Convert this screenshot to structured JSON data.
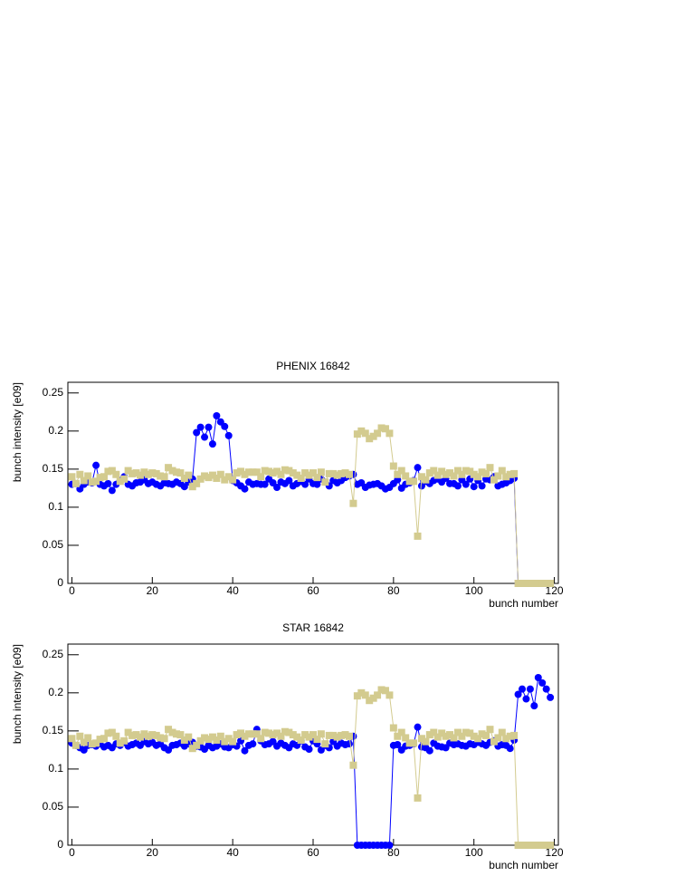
{
  "chart_data": [
    {
      "type": "line",
      "title": "PHENIX 16842",
      "x_label": "bunch number",
      "y_label": "bunch intensity [e09]",
      "x": [
        0,
        1,
        2,
        3,
        4,
        5,
        6,
        7,
        8,
        9,
        10,
        11,
        12,
        13,
        14,
        15,
        16,
        17,
        18,
        19,
        20,
        21,
        22,
        23,
        24,
        25,
        26,
        27,
        28,
        29,
        30,
        31,
        32,
        33,
        34,
        35,
        36,
        37,
        38,
        39,
        40,
        41,
        42,
        43,
        44,
        45,
        46,
        47,
        48,
        49,
        50,
        51,
        52,
        53,
        54,
        55,
        56,
        57,
        58,
        59,
        60,
        61,
        62,
        63,
        64,
        65,
        66,
        67,
        68,
        69,
        70,
        71,
        72,
        73,
        74,
        75,
        76,
        77,
        78,
        79,
        80,
        81,
        82,
        83,
        84,
        85,
        86,
        87,
        88,
        89,
        90,
        91,
        92,
        93,
        94,
        95,
        96,
        97,
        98,
        99,
        100,
        101,
        102,
        103,
        104,
        105,
        106,
        107,
        108,
        109,
        110,
        111,
        112,
        113,
        114,
        115,
        116,
        117,
        118,
        119
      ],
      "series": [
        {
          "color": "#0000ff",
          "marker": "circle",
          "values": [
            0.13,
            0.131,
            0.124,
            0.13,
            0.133,
            0.132,
            0.155,
            0.13,
            0.128,
            0.131,
            0.122,
            0.13,
            0.135,
            0.14,
            0.13,
            0.128,
            0.132,
            0.133,
            0.136,
            0.131,
            0.133,
            0.13,
            0.128,
            0.132,
            0.131,
            0.13,
            0.133,
            0.131,
            0.127,
            0.133,
            0.137,
            0.198,
            0.205,
            0.192,
            0.205,
            0.183,
            0.22,
            0.212,
            0.206,
            0.194,
            0.135,
            0.132,
            0.128,
            0.124,
            0.133,
            0.13,
            0.131,
            0.13,
            0.13,
            0.137,
            0.132,
            0.126,
            0.133,
            0.131,
            0.135,
            0.128,
            0.131,
            0.134,
            0.13,
            0.137,
            0.131,
            0.13,
            0.137,
            0.133,
            0.128,
            0.135,
            0.132,
            0.135,
            0.139,
            0.141,
            0.143,
            0.13,
            0.132,
            0.126,
            0.129,
            0.13,
            0.131,
            0.128,
            0.124,
            0.126,
            0.131,
            0.136,
            0.125,
            0.13,
            0.132,
            0.135,
            0.152,
            0.128,
            0.134,
            0.131,
            0.135,
            0.137,
            0.133,
            0.138,
            0.131,
            0.131,
            0.128,
            0.136,
            0.13,
            0.137,
            0.127,
            0.135,
            0.128,
            0.137,
            0.136,
            0.14,
            0.128,
            0.13,
            0.132,
            0.135,
            0.138,
            0,
            0,
            0,
            0,
            0,
            0,
            0,
            0,
            0
          ]
        },
        {
          "color": "#d3cb8f",
          "marker": "square",
          "values": [
            0.14,
            0.131,
            0.143,
            0.135,
            0.141,
            0.133,
            0.134,
            0.139,
            0.14,
            0.147,
            0.148,
            0.143,
            0.134,
            0.137,
            0.148,
            0.144,
            0.145,
            0.142,
            0.146,
            0.143,
            0.145,
            0.144,
            0.141,
            0.14,
            0.152,
            0.148,
            0.146,
            0.145,
            0.138,
            0.142,
            0.127,
            0.131,
            0.137,
            0.141,
            0.139,
            0.142,
            0.138,
            0.143,
            0.136,
            0.14,
            0.136,
            0.145,
            0.147,
            0.143,
            0.146,
            0.146,
            0.146,
            0.14,
            0.148,
            0.147,
            0.145,
            0.147,
            0.143,
            0.149,
            0.148,
            0.145,
            0.142,
            0.138,
            0.145,
            0.142,
            0.145,
            0.139,
            0.146,
            0.133,
            0.144,
            0.144,
            0.142,
            0.144,
            0.145,
            0.143,
            0.105,
            0.196,
            0.2,
            0.197,
            0.19,
            0.193,
            0.197,
            0.204,
            0.203,
            0.197,
            0.154,
            0.143,
            0.148,
            0.141,
            0.134,
            0.134,
            0.062,
            0.14,
            0.136,
            0.145,
            0.148,
            0.142,
            0.147,
            0.143,
            0.145,
            0.141,
            0.148,
            0.143,
            0.148,
            0.147,
            0.143,
            0.14,
            0.146,
            0.144,
            0.152,
            0.136,
            0.141,
            0.148,
            0.14,
            0.143,
            0.144,
            0,
            0,
            0,
            0,
            0,
            0,
            0,
            0,
            0
          ]
        }
      ],
      "xlim": [
        -1,
        121
      ],
      "ylim": [
        0,
        0.264
      ],
      "xticks": [
        0,
        20,
        40,
        60,
        80,
        100,
        120
      ],
      "yticks": [
        0,
        0.05,
        0.1,
        0.15,
        0.2,
        0.25
      ]
    },
    {
      "type": "line",
      "title": "STAR 16842",
      "x_label": "bunch number",
      "y_label": "bunch intensity [e09]",
      "x": [
        0,
        1,
        2,
        3,
        4,
        5,
        6,
        7,
        8,
        9,
        10,
        11,
        12,
        13,
        14,
        15,
        16,
        17,
        18,
        19,
        20,
        21,
        22,
        23,
        24,
        25,
        26,
        27,
        28,
        29,
        30,
        31,
        32,
        33,
        34,
        35,
        36,
        37,
        38,
        39,
        40,
        41,
        42,
        43,
        44,
        45,
        46,
        47,
        48,
        49,
        50,
        51,
        52,
        53,
        54,
        55,
        56,
        57,
        58,
        59,
        60,
        61,
        62,
        63,
        64,
        65,
        66,
        67,
        68,
        69,
        70,
        71,
        72,
        73,
        74,
        75,
        76,
        77,
        78,
        79,
        80,
        81,
        82,
        83,
        84,
        85,
        86,
        87,
        88,
        89,
        90,
        91,
        92,
        93,
        94,
        95,
        96,
        97,
        98,
        99,
        100,
        101,
        102,
        103,
        104,
        105,
        106,
        107,
        108,
        109,
        110,
        111,
        112,
        113,
        114,
        115,
        116,
        117,
        118,
        119
      ],
      "series": [
        {
          "color": "#0000ff",
          "marker": "circle",
          "values": [
            0.134,
            0.131,
            0.128,
            0.125,
            0.131,
            0.132,
            0.13,
            0.133,
            0.129,
            0.131,
            0.128,
            0.133,
            0.131,
            0.135,
            0.13,
            0.132,
            0.134,
            0.131,
            0.136,
            0.133,
            0.135,
            0.131,
            0.133,
            0.128,
            0.125,
            0.131,
            0.132,
            0.134,
            0.13,
            0.133,
            0.135,
            0.13,
            0.129,
            0.126,
            0.131,
            0.128,
            0.13,
            0.133,
            0.129,
            0.128,
            0.132,
            0.13,
            0.137,
            0.124,
            0.131,
            0.133,
            0.152,
            0.137,
            0.132,
            0.133,
            0.136,
            0.13,
            0.134,
            0.131,
            0.128,
            0.133,
            0.131,
            0.137,
            0.129,
            0.126,
            0.137,
            0.133,
            0.125,
            0.131,
            0.128,
            0.136,
            0.13,
            0.134,
            0.132,
            0.133,
            0.143,
            0,
            0,
            0,
            0,
            0,
            0,
            0,
            0,
            0,
            0.131,
            0.132,
            0.125,
            0.13,
            0.131,
            0.133,
            0.155,
            0.129,
            0.128,
            0.124,
            0.134,
            0.13,
            0.129,
            0.128,
            0.134,
            0.132,
            0.133,
            0.131,
            0.13,
            0.133,
            0.132,
            0.135,
            0.133,
            0.131,
            0.135,
            0.137,
            0.13,
            0.132,
            0.131,
            0.127,
            0.138,
            0.198,
            0.205,
            0.192,
            0.205,
            0.183,
            0.22,
            0.213,
            0.205,
            0.194
          ]
        },
        {
          "color": "#d3cb8f",
          "marker": "square",
          "values": [
            0.14,
            0.131,
            0.143,
            0.135,
            0.141,
            0.133,
            0.134,
            0.139,
            0.14,
            0.147,
            0.148,
            0.143,
            0.134,
            0.137,
            0.148,
            0.144,
            0.145,
            0.142,
            0.146,
            0.143,
            0.145,
            0.144,
            0.141,
            0.14,
            0.152,
            0.148,
            0.146,
            0.145,
            0.138,
            0.142,
            0.127,
            0.131,
            0.137,
            0.141,
            0.139,
            0.142,
            0.138,
            0.143,
            0.136,
            0.14,
            0.136,
            0.145,
            0.147,
            0.143,
            0.146,
            0.146,
            0.146,
            0.14,
            0.148,
            0.147,
            0.145,
            0.147,
            0.143,
            0.149,
            0.148,
            0.145,
            0.142,
            0.138,
            0.145,
            0.142,
            0.145,
            0.139,
            0.146,
            0.133,
            0.144,
            0.144,
            0.142,
            0.144,
            0.145,
            0.143,
            0.105,
            0.196,
            0.2,
            0.197,
            0.19,
            0.193,
            0.197,
            0.204,
            0.203,
            0.197,
            0.154,
            0.143,
            0.148,
            0.141,
            0.134,
            0.134,
            0.062,
            0.14,
            0.136,
            0.145,
            0.148,
            0.142,
            0.147,
            0.143,
            0.145,
            0.141,
            0.148,
            0.143,
            0.148,
            0.147,
            0.143,
            0.14,
            0.146,
            0.144,
            0.152,
            0.136,
            0.141,
            0.148,
            0.14,
            0.143,
            0.144,
            0,
            0,
            0,
            0,
            0,
            0,
            0,
            0,
            0
          ]
        }
      ],
      "xlim": [
        -1,
        121
      ],
      "ylim": [
        0,
        0.264
      ],
      "xticks": [
        0,
        20,
        40,
        60,
        80,
        100,
        120
      ],
      "yticks": [
        0,
        0.05,
        0.1,
        0.15,
        0.2,
        0.25
      ]
    }
  ]
}
